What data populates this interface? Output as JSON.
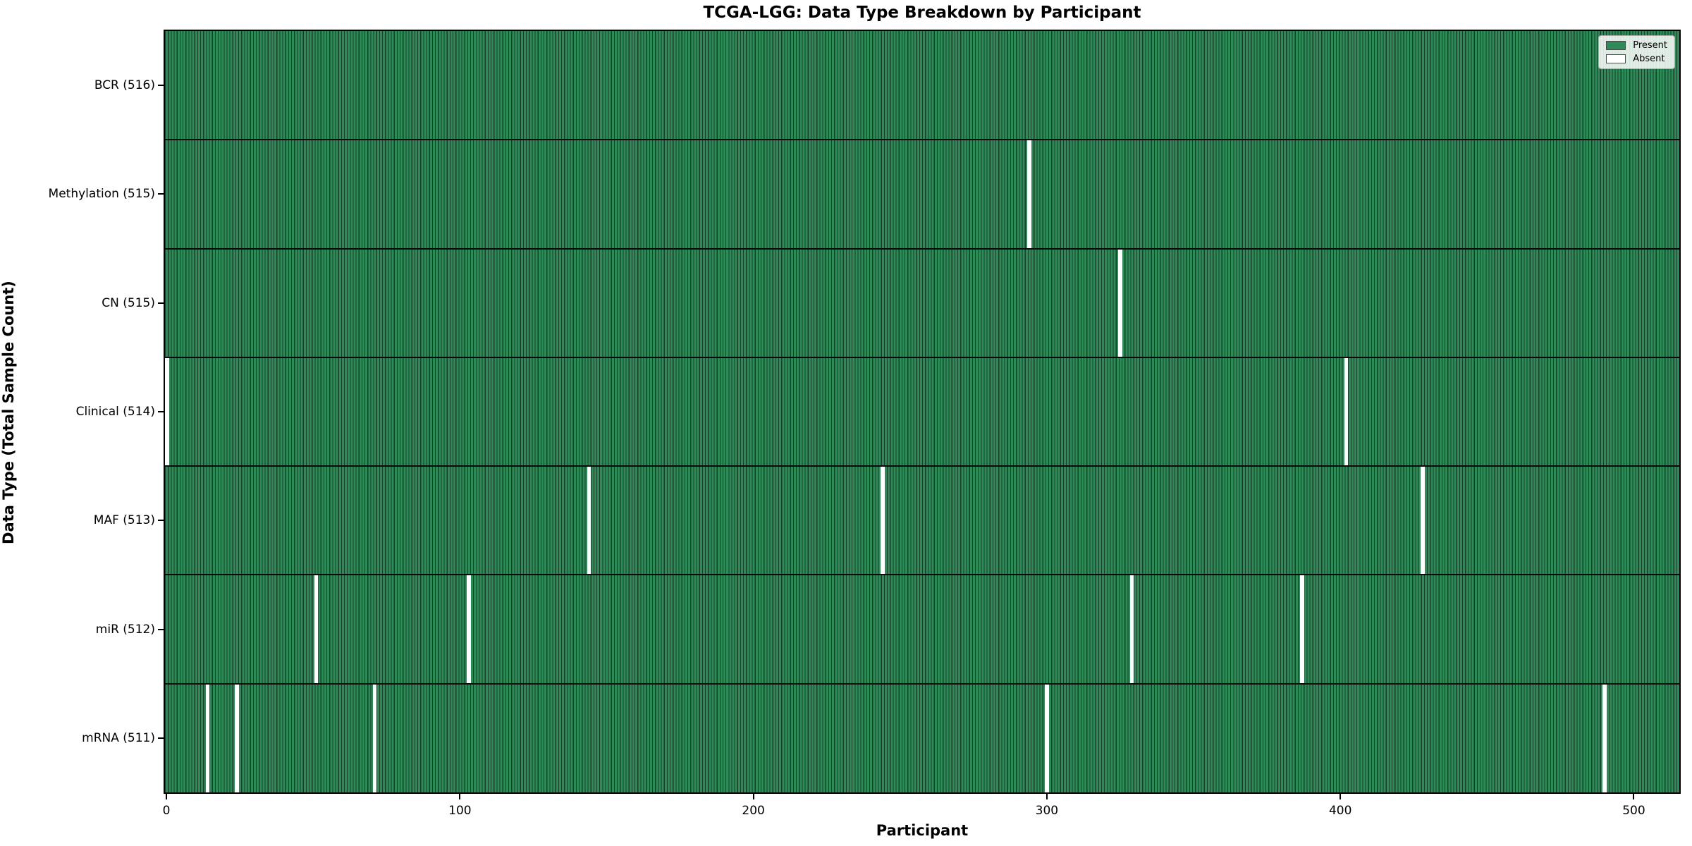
{
  "chart_data": {
    "type": "heatmap",
    "title": "TCGA-LGG: Data Type Breakdown by Participant",
    "xlabel": "Participant",
    "ylabel": "Data Type (Total Sample Count)",
    "x_ticks": [
      0,
      100,
      200,
      300,
      400,
      500
    ],
    "n_participants": 516,
    "xlim": [
      -0.5,
      515.5
    ],
    "legend_position": "upper right",
    "legend": [
      {
        "label": "Present",
        "color": "#2e8b57"
      },
      {
        "label": "Absent",
        "color": "#ffffff"
      }
    ],
    "colors": {
      "present_fill": "#2e8b57",
      "bar_edge": "#17402b",
      "absent_fill": "#ffffff",
      "separator": "#0b0b0b"
    },
    "rows": [
      {
        "label": "BCR (516)",
        "total": 516,
        "absent_participants": []
      },
      {
        "label": "Methylation (515)",
        "total": 515,
        "absent_participants": [
          294
        ]
      },
      {
        "label": "CN (515)",
        "total": 515,
        "absent_participants": [
          325
        ]
      },
      {
        "label": "Clinical (514)",
        "total": 514,
        "absent_participants": [
          0,
          402
        ]
      },
      {
        "label": "MAF (513)",
        "total": 513,
        "absent_participants": [
          144,
          244,
          428
        ]
      },
      {
        "label": "miR (512)",
        "total": 512,
        "absent_participants": [
          51,
          103,
          329,
          387
        ]
      },
      {
        "label": "mRNA (511)",
        "total": 511,
        "absent_participants": [
          14,
          24,
          71,
          300,
          490
        ]
      }
    ]
  }
}
